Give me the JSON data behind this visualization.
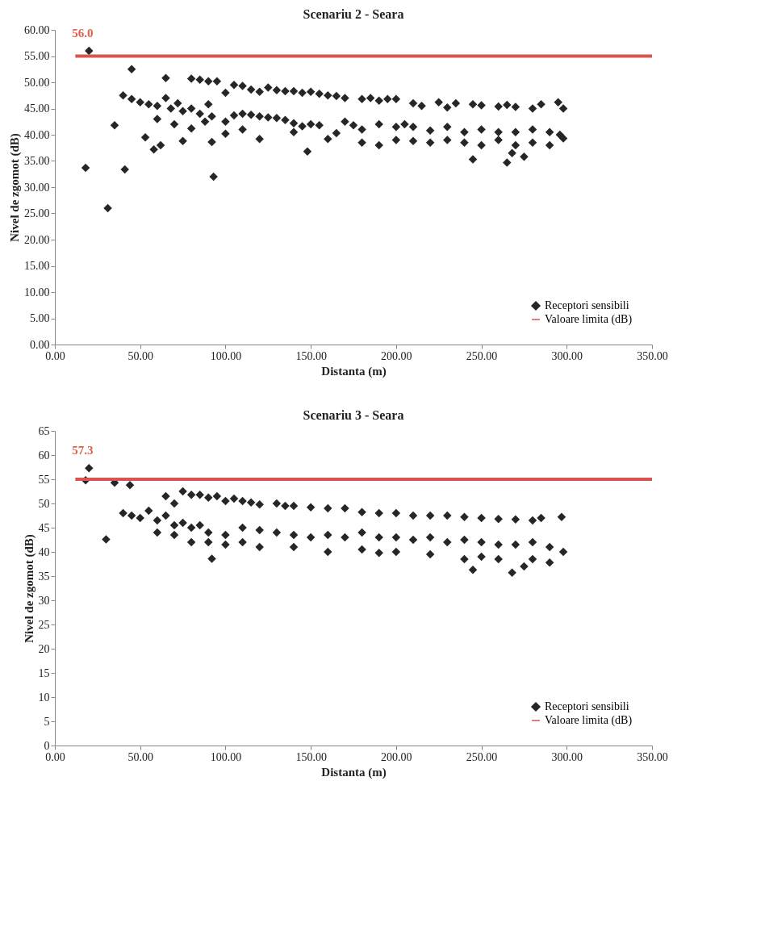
{
  "chart_data": [
    {
      "type": "scatter",
      "title": "Scenariu 2 - Seara",
      "xlabel": "Distanta (m)",
      "ylabel": "Nivel de zgomot (dB)",
      "legend": "bottom right",
      "grid": false,
      "xlim": [
        0,
        350
      ],
      "ylim": [
        0,
        60
      ],
      "xticks": [
        {
          "value": 0,
          "label": "0.00"
        },
        {
          "value": 50,
          "label": "50.00"
        },
        {
          "value": 100,
          "label": "100.00"
        },
        {
          "value": 150,
          "label": "150.00"
        },
        {
          "value": 200,
          "label": "200.00"
        },
        {
          "value": 250,
          "label": "250.00"
        },
        {
          "value": 300,
          "label": "300.00"
        },
        {
          "value": 350,
          "label": "350.00"
        }
      ],
      "yticks": [
        {
          "value": 0,
          "label": "0.00"
        },
        {
          "value": 5,
          "label": "5.00"
        },
        {
          "value": 10,
          "label": "10.00"
        },
        {
          "value": 15,
          "label": "15.00"
        },
        {
          "value": 20,
          "label": "20.00"
        },
        {
          "value": 25,
          "label": "25.00"
        },
        {
          "value": 30,
          "label": "30.00"
        },
        {
          "value": 35,
          "label": "35.00"
        },
        {
          "value": 40,
          "label": "40.00"
        },
        {
          "value": 45,
          "label": "45.00"
        },
        {
          "value": 50,
          "label": "50.00"
        },
        {
          "value": 55,
          "label": "55.00"
        },
        {
          "value": 60,
          "label": "60.00"
        }
      ],
      "annotations": [
        {
          "text": "56.0",
          "x": 20,
          "y": 56
        }
      ],
      "series": [
        {
          "name": "Receptori sensibili",
          "type": "scatter",
          "marker": "diamond",
          "color": "#262626",
          "x": [
            20,
            18,
            31,
            35,
            41,
            45,
            53,
            58,
            62,
            65,
            75,
            92,
            93,
            95,
            148,
            245,
            265,
            268,
            275,
            80,
            85,
            90,
            100,
            105,
            110,
            115,
            120,
            125,
            130,
            135,
            140,
            145,
            150,
            155,
            160,
            165,
            170,
            180,
            185,
            190,
            195,
            200,
            210,
            215,
            225,
            230,
            235,
            245,
            250,
            260,
            265,
            270,
            280,
            285,
            295,
            298,
            40,
            45,
            50,
            55,
            60,
            65,
            68,
            72,
            75,
            80,
            85,
            90,
            92,
            100,
            105,
            110,
            115,
            120,
            125,
            130,
            135,
            140,
            145,
            150,
            155,
            165,
            170,
            175,
            180,
            190,
            200,
            205,
            210,
            220,
            230,
            240,
            250,
            260,
            270,
            280,
            290,
            296,
            60,
            70,
            80,
            88,
            100,
            110,
            120,
            140,
            160,
            180,
            190,
            200,
            210,
            220,
            230,
            240,
            250,
            260,
            270,
            280,
            290,
            298
          ],
          "values": [
            56,
            33.7,
            26,
            41.8,
            33.4,
            52.5,
            39.5,
            37.2,
            38,
            50.8,
            38.8,
            38.6,
            32,
            50.2,
            36.8,
            35.3,
            34.7,
            36.5,
            35.8,
            50.7,
            50.5,
            50.2,
            48,
            49.5,
            49.3,
            48.6,
            48.2,
            49,
            48.5,
            48.3,
            48.3,
            48,
            48.2,
            47.8,
            47.5,
            47.4,
            47,
            46.8,
            47,
            46.5,
            46.8,
            46.8,
            46,
            45.5,
            46.2,
            45.2,
            46,
            45.8,
            45.6,
            45.4,
            45.7,
            45.3,
            45,
            45.8,
            46.2,
            45,
            47.5,
            46.8,
            46.2,
            45.8,
            45.5,
            47,
            45,
            46,
            44.5,
            45,
            44,
            45.8,
            43.5,
            42.5,
            43.7,
            44,
            43.8,
            43.5,
            43.3,
            43.2,
            42.8,
            42.2,
            41.6,
            42,
            41.8,
            40.3,
            42.5,
            41.8,
            41,
            42,
            41.5,
            42,
            41.5,
            40.8,
            41.5,
            40.5,
            41,
            40.5,
            40.5,
            41,
            40.5,
            40,
            43,
            42,
            41.2,
            42.5,
            40.2,
            41,
            39.2,
            40.5,
            39.2,
            38.5,
            38,
            39,
            38.8,
            38.5,
            39,
            38.5,
            38,
            39,
            38,
            38.5,
            38,
            39.3
          ]
        },
        {
          "name": "Valoare limita (dB)",
          "type": "line",
          "marker": "none",
          "line_style": "solid",
          "color": "#d9534f",
          "x": [
            12,
            350
          ],
          "values": [
            55,
            55
          ]
        }
      ]
    },
    {
      "type": "scatter",
      "title": "Scenariu 3 - Seara",
      "xlabel": "Distanta (m)",
      "ylabel": "Nivel de zgomot (dB)",
      "legend": "bottom right",
      "grid": false,
      "xlim": [
        0,
        350
      ],
      "ylim": [
        0,
        65
      ],
      "xticks": [
        {
          "value": 0,
          "label": "0.00"
        },
        {
          "value": 50,
          "label": "50.00"
        },
        {
          "value": 100,
          "label": "100.00"
        },
        {
          "value": 150,
          "label": "150.00"
        },
        {
          "value": 200,
          "label": "200.00"
        },
        {
          "value": 250,
          "label": "250.00"
        },
        {
          "value": 300,
          "label": "300.00"
        },
        {
          "value": 350,
          "label": "350.00"
        }
      ],
      "yticks": [
        0,
        5,
        10,
        15,
        20,
        25,
        30,
        35,
        40,
        45,
        50,
        55,
        60,
        65
      ],
      "annotations": [
        {
          "text": "57.3",
          "x": 20,
          "y": 57.3
        }
      ],
      "series": [
        {
          "name": "Receptori sensibili",
          "type": "scatter",
          "marker": "diamond",
          "color": "#262626",
          "x": [
            18,
            20,
            30,
            35,
            44,
            92,
            245,
            268,
            275,
            65,
            70,
            75,
            80,
            85,
            90,
            95,
            100,
            105,
            110,
            115,
            120,
            130,
            135,
            140,
            150,
            160,
            170,
            180,
            190,
            200,
            210,
            220,
            230,
            240,
            250,
            260,
            270,
            280,
            285,
            297,
            40,
            45,
            50,
            55,
            60,
            65,
            70,
            75,
            80,
            85,
            90,
            100,
            110,
            120,
            130,
            140,
            150,
            160,
            170,
            180,
            190,
            200,
            210,
            220,
            230,
            240,
            250,
            260,
            270,
            280,
            290,
            298,
            60,
            70,
            80,
            90,
            100,
            110,
            120,
            140,
            160,
            180,
            190,
            200,
            220,
            240,
            250,
            260,
            280,
            290
          ],
          "values": [
            54.8,
            57.3,
            42.6,
            54.3,
            53.8,
            38.6,
            36.3,
            35.7,
            37,
            51.5,
            50,
            52.5,
            51.8,
            51.8,
            51.2,
            51.5,
            50.5,
            51,
            50.5,
            50.2,
            49.8,
            50,
            49.5,
            49.5,
            49.2,
            49,
            49,
            48.2,
            48,
            48,
            47.5,
            47.5,
            47.5,
            47.2,
            47,
            46.8,
            46.7,
            46.5,
            47,
            47.2,
            48,
            47.5,
            47,
            48.5,
            46.5,
            47.5,
            45.5,
            46,
            45,
            45.5,
            44,
            43.5,
            45,
            44.5,
            44,
            43.5,
            43,
            43.5,
            43,
            44,
            43,
            43,
            42.5,
            43,
            42,
            42.5,
            42,
            41.5,
            41.5,
            42,
            41,
            40,
            44,
            43.5,
            42,
            42,
            41.5,
            42,
            41,
            41,
            40,
            40.5,
            39.8,
            40,
            39.5,
            38.5,
            39,
            38.5,
            38.5,
            37.8
          ]
        },
        {
          "name": "Valoare limita (dB)",
          "type": "line",
          "marker": "none",
          "line_style": "solid",
          "color": "#d9534f",
          "x": [
            12,
            350
          ],
          "values": [
            55,
            55
          ]
        }
      ]
    }
  ]
}
